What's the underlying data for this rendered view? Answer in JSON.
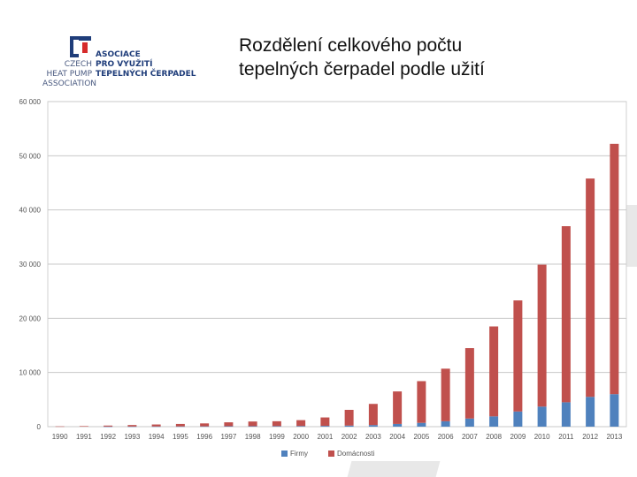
{
  "header": {
    "title_line1": "Rozdělení celkového počtu",
    "title_line2": "tepelných čerpadel podle užití"
  },
  "logo": {
    "left_lines": [
      "CZECH",
      "HEAT PUMP",
      "ASSOCIATION"
    ],
    "right_lines": [
      "ASOCIACE",
      "PRO VYUŽITÍ",
      "TEPELNÝCH ČERPADEL"
    ],
    "colors": {
      "blue": "#1f3d7a",
      "red": "#d62b2b"
    }
  },
  "chart_data": {
    "type": "bar",
    "stacked": true,
    "categories": [
      "1990",
      "1991",
      "1992",
      "1993",
      "1994",
      "1995",
      "1996",
      "1997",
      "1998",
      "1999",
      "2000",
      "2001",
      "2002",
      "2003",
      "2004",
      "2005",
      "2006",
      "2007",
      "2008",
      "2009",
      "2010",
      "2011",
      "2012",
      "2013"
    ],
    "series": [
      {
        "name": "Firmy",
        "color": "#4f81bd",
        "values": [
          0,
          0,
          20,
          30,
          40,
          50,
          60,
          80,
          90,
          100,
          120,
          150,
          200,
          300,
          500,
          700,
          1000,
          1500,
          1900,
          2800,
          3700,
          4500,
          5500,
          6000
        ]
      },
      {
        "name": "Domácnosti",
        "color": "#c0504d",
        "values": [
          50,
          100,
          180,
          270,
          360,
          450,
          540,
          720,
          860,
          900,
          1080,
          1550,
          2900,
          3900,
          6000,
          7700,
          9700,
          13000,
          16600,
          20500,
          26200,
          32500,
          40300,
          46200
        ]
      }
    ],
    "y_ticks": [
      "0",
      "10 000",
      "20 000",
      "30 000",
      "40 000",
      "50 000",
      "60 000"
    ],
    "ylim": [
      0,
      60000
    ],
    "grid": true,
    "legend_position": "bottom"
  }
}
